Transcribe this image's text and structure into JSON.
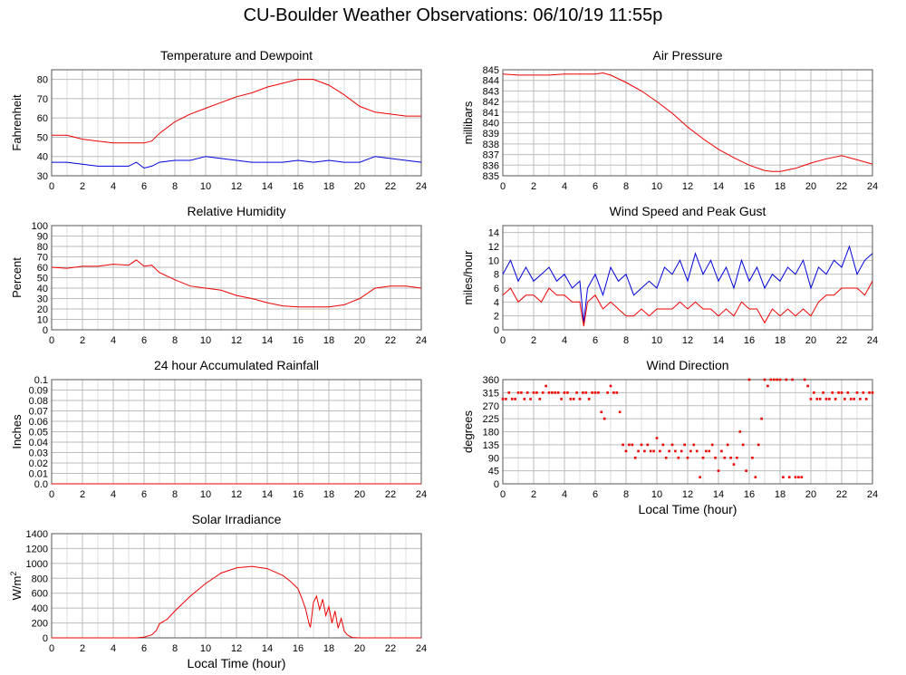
{
  "page": {
    "title": "CU-Boulder Weather Observations: 06/10/19 11:55p"
  },
  "colors": {
    "red": "#ee0000",
    "blue": "#0000dd",
    "grid": "#bbbbbb",
    "frame": "#555555"
  },
  "chart_data": [
    {
      "id": "temp",
      "type": "line",
      "title": "Temperature and Dewpoint",
      "xlabel": "",
      "ylabel": "Fahrenheit",
      "xlim": [
        0,
        24
      ],
      "ylim": [
        30,
        85
      ],
      "xticks": [
        0,
        2,
        4,
        6,
        8,
        10,
        12,
        14,
        16,
        18,
        20,
        22,
        24
      ],
      "yticks": [
        30,
        40,
        50,
        60,
        70,
        80
      ],
      "series": [
        {
          "color": "red",
          "x": [
            0,
            1,
            2,
            3,
            4,
            5,
            6,
            6.5,
            7,
            7.5,
            8,
            9,
            10,
            11,
            12,
            13,
            14,
            15,
            16,
            16.5,
            17,
            18,
            19,
            20,
            21,
            22,
            23,
            24
          ],
          "y": [
            51,
            51,
            49,
            48,
            47,
            47,
            47,
            48,
            52,
            55,
            58,
            62,
            65,
            68,
            71,
            73,
            76,
            78,
            80,
            80,
            80,
            77,
            72,
            66,
            63,
            62,
            61,
            61
          ]
        },
        {
          "color": "blue",
          "x": [
            0,
            1,
            2,
            3,
            4,
            5,
            5.5,
            6,
            6.5,
            7,
            8,
            9,
            10,
            11,
            12,
            13,
            14,
            15,
            16,
            17,
            18,
            19,
            20,
            21,
            22,
            23,
            24
          ],
          "y": [
            37,
            37,
            36,
            35,
            35,
            35,
            37,
            34,
            35,
            37,
            38,
            38,
            40,
            39,
            38,
            37,
            37,
            37,
            38,
            37,
            38,
            37,
            37,
            40,
            39,
            38,
            37
          ]
        }
      ]
    },
    {
      "id": "pressure",
      "type": "line",
      "title": "Air Pressure",
      "xlabel": "",
      "ylabel": "millibars",
      "xlim": [
        0,
        24
      ],
      "ylim": [
        835,
        845
      ],
      "xticks": [
        0,
        2,
        4,
        6,
        8,
        10,
        12,
        14,
        16,
        18,
        20,
        22,
        24
      ],
      "yticks": [
        835,
        836,
        837,
        838,
        839,
        840,
        841,
        842,
        843,
        844,
        845
      ],
      "series": [
        {
          "color": "red",
          "x": [
            0,
            1,
            2,
            3,
            4,
            5,
            6,
            6.5,
            7,
            8,
            9,
            10,
            11,
            12,
            13,
            14,
            15,
            16,
            17,
            17.5,
            18,
            19,
            20,
            21,
            22,
            23,
            24
          ],
          "y": [
            844.6,
            844.5,
            844.5,
            844.5,
            844.6,
            844.6,
            844.6,
            844.7,
            844.5,
            843.8,
            843,
            842,
            840.9,
            839.6,
            838.5,
            837.5,
            836.7,
            836,
            835.5,
            835.4,
            835.4,
            835.7,
            836.2,
            836.6,
            836.9,
            836.5,
            836.1
          ]
        }
      ]
    },
    {
      "id": "humidity",
      "type": "line",
      "title": "Relative Humidity",
      "xlabel": "",
      "ylabel": "Percent",
      "xlim": [
        0,
        24
      ],
      "ylim": [
        0,
        100
      ],
      "xticks": [
        0,
        2,
        4,
        6,
        8,
        10,
        12,
        14,
        16,
        18,
        20,
        22,
        24
      ],
      "yticks": [
        0,
        10,
        20,
        30,
        40,
        50,
        60,
        70,
        80,
        90,
        100
      ],
      "series": [
        {
          "color": "red",
          "x": [
            0,
            1,
            2,
            3,
            4,
            5,
            5.5,
            6,
            6.5,
            7,
            8,
            9,
            10,
            11,
            12,
            13,
            14,
            15,
            16,
            17,
            18,
            19,
            20,
            21,
            22,
            23,
            24
          ],
          "y": [
            60,
            59,
            61,
            61,
            63,
            62,
            67,
            61,
            62,
            55,
            48,
            42,
            40,
            38,
            33,
            30,
            26,
            23,
            22,
            22,
            22,
            24,
            30,
            40,
            42,
            42,
            40
          ]
        }
      ]
    },
    {
      "id": "wind",
      "type": "line",
      "title": "Wind Speed and Peak Gust",
      "xlabel": "",
      "ylabel": "miles/hour",
      "xlim": [
        0,
        24
      ],
      "ylim": [
        0,
        15
      ],
      "xticks": [
        0,
        2,
        4,
        6,
        8,
        10,
        12,
        14,
        16,
        18,
        20,
        22,
        24
      ],
      "yticks": [
        0,
        2,
        4,
        6,
        8,
        10,
        12,
        14
      ],
      "series": [
        {
          "color": "blue",
          "x": [
            0,
            0.5,
            1,
            1.5,
            2,
            2.5,
            3,
            3.5,
            4,
            4.5,
            5,
            5.25,
            5.5,
            6,
            6.5,
            7,
            7.5,
            8,
            8.5,
            9,
            9.5,
            10,
            10.5,
            11,
            11.5,
            12,
            12.5,
            13,
            13.5,
            14,
            14.5,
            15,
            15.5,
            16,
            16.5,
            17,
            17.5,
            18,
            18.5,
            19,
            19.5,
            20,
            20.5,
            21,
            21.5,
            22,
            22.5,
            23,
            23.5,
            24
          ],
          "y": [
            8,
            10,
            7,
            9,
            7,
            8,
            9,
            7,
            8,
            6,
            7,
            1,
            6,
            8,
            5,
            9,
            7,
            8,
            5,
            6,
            7,
            6,
            9,
            8,
            10,
            7,
            11,
            8,
            10,
            7,
            9,
            6,
            10,
            7,
            9,
            6,
            8,
            7,
            9,
            8,
            10,
            6,
            9,
            8,
            10,
            9,
            12,
            8,
            10,
            11
          ]
        },
        {
          "color": "red",
          "x": [
            0,
            0.5,
            1,
            1.5,
            2,
            2.5,
            3,
            3.5,
            4,
            4.5,
            5,
            5.25,
            5.5,
            6,
            6.5,
            7,
            7.5,
            8,
            8.5,
            9,
            9.5,
            10,
            10.5,
            11,
            11.5,
            12,
            12.5,
            13,
            13.5,
            14,
            14.5,
            15,
            15.5,
            16,
            16.5,
            17,
            17.5,
            18,
            18.5,
            19,
            19.5,
            20,
            20.5,
            21,
            21.5,
            22,
            22.5,
            23,
            23.5,
            24
          ],
          "y": [
            5,
            6,
            4,
            5,
            5,
            4,
            6,
            5,
            5,
            4,
            4,
            0.5,
            4,
            5,
            3,
            4,
            3,
            2,
            2,
            3,
            2,
            3,
            3,
            3,
            4,
            3,
            4,
            3,
            3,
            2,
            3,
            2,
            4,
            3,
            3,
            1,
            3,
            2,
            3,
            2,
            3,
            2,
            4,
            5,
            5,
            6,
            6,
            6,
            5,
            7
          ]
        }
      ]
    },
    {
      "id": "rain",
      "type": "line",
      "title": "24 hour Accumulated Rainfall",
      "xlabel": "",
      "ylabel": "Inches",
      "xlim": [
        0,
        24
      ],
      "ylim": [
        0,
        0.1
      ],
      "xticks": [
        0,
        2,
        4,
        6,
        8,
        10,
        12,
        14,
        16,
        18,
        20,
        22,
        24
      ],
      "yticks": [
        0,
        0.01,
        0.02,
        0.03,
        0.04,
        0.05,
        0.06,
        0.07,
        0.08,
        0.09,
        0.1
      ],
      "ytick_labels": [
        "0.0",
        "0.01",
        "0.02",
        "0.03",
        "0.04",
        "0.05",
        "0.06",
        "0.07",
        "0.08",
        "0.09",
        "0.1"
      ],
      "series": [
        {
          "color": "red",
          "x": [
            0,
            24
          ],
          "y": [
            0,
            0
          ]
        }
      ]
    },
    {
      "id": "direction",
      "type": "scatter",
      "title": "Wind Direction",
      "xlabel": "Local Time (hour)",
      "ylabel": "degrees",
      "xlim": [
        0,
        24
      ],
      "ylim": [
        0,
        360
      ],
      "xticks": [
        0,
        2,
        4,
        6,
        8,
        10,
        12,
        14,
        16,
        18,
        20,
        22,
        24
      ],
      "yticks": [
        0,
        45,
        90,
        135,
        180,
        225,
        270,
        315,
        360
      ],
      "series": [
        {
          "color": "red",
          "x": [
            0,
            0.2,
            0.4,
            0.6,
            0.8,
            1.0,
            1.2,
            1.4,
            1.6,
            1.8,
            2.0,
            2.2,
            2.4,
            2.6,
            2.8,
            3.0,
            3.2,
            3.4,
            3.6,
            3.8,
            4.0,
            4.2,
            4.4,
            4.6,
            4.8,
            5.0,
            5.2,
            5.4,
            5.6,
            5.8,
            6.0,
            6.2,
            6.4,
            6.6,
            6.8,
            7.0,
            7.2,
            7.4,
            7.6,
            7.8,
            8.0,
            8.2,
            8.4,
            8.6,
            8.8,
            9.0,
            9.2,
            9.4,
            9.6,
            9.8,
            10.0,
            10.2,
            10.4,
            10.6,
            10.8,
            11.0,
            11.2,
            11.4,
            11.6,
            11.8,
            12.0,
            12.2,
            12.4,
            12.6,
            12.8,
            13.0,
            13.2,
            13.4,
            13.6,
            13.8,
            14.0,
            14.2,
            14.4,
            14.6,
            14.8,
            15.0,
            15.2,
            15.4,
            15.6,
            15.8,
            16.0,
            16.2,
            16.4,
            16.6,
            16.8,
            17.0,
            17.2,
            17.4,
            17.6,
            17.8,
            18.0,
            18.2,
            18.4,
            18.6,
            18.8,
            19.0,
            19.2,
            19.4,
            19.6,
            19.8,
            20.0,
            20.2,
            20.4,
            20.6,
            20.8,
            21.0,
            21.2,
            21.4,
            21.6,
            21.8,
            22.0,
            22.2,
            22.4,
            22.6,
            22.8,
            23.0,
            23.2,
            23.4,
            23.6,
            23.8,
            24.0
          ],
          "y": [
            293,
            293,
            315,
            293,
            293,
            315,
            315,
            293,
            315,
            293,
            315,
            315,
            293,
            315,
            338,
            315,
            315,
            315,
            315,
            293,
            315,
            315,
            293,
            293,
            315,
            293,
            315,
            315,
            293,
            315,
            315,
            315,
            248,
            225,
            315,
            338,
            315,
            315,
            248,
            135,
            113,
            135,
            135,
            90,
            113,
            135,
            113,
            135,
            113,
            113,
            158,
            113,
            135,
            90,
            113,
            135,
            113,
            90,
            113,
            135,
            90,
            113,
            135,
            113,
            23,
            90,
            113,
            113,
            135,
            90,
            45,
            113,
            90,
            135,
            90,
            67,
            90,
            180,
            135,
            45,
            360,
            90,
            23,
            135,
            225,
            360,
            338,
            360,
            360,
            360,
            360,
            23,
            360,
            23,
            360,
            23,
            23,
            23,
            360,
            338,
            293,
            315,
            293,
            293,
            315,
            293,
            293,
            315,
            293,
            315,
            315,
            293,
            315,
            293,
            293,
            315,
            293,
            315,
            293,
            315,
            315
          ]
        }
      ]
    },
    {
      "id": "solar",
      "type": "line",
      "title": "Solar Irradiance",
      "xlabel": "Local Time (hour)",
      "ylabel": "W/m",
      "ylabel_sup": "2",
      "xlim": [
        0,
        24
      ],
      "ylim": [
        0,
        1400
      ],
      "xticks": [
        0,
        2,
        4,
        6,
        8,
        10,
        12,
        14,
        16,
        18,
        20,
        22,
        24
      ],
      "yticks": [
        0,
        200,
        400,
        600,
        800,
        1000,
        1200,
        1400
      ],
      "series": [
        {
          "color": "red",
          "x": [
            0,
            5.5,
            6,
            6.5,
            6.8,
            7,
            7.5,
            8,
            9,
            10,
            11,
            12,
            13,
            14,
            15,
            15.5,
            16,
            16.3,
            16.5,
            16.7,
            16.8,
            17,
            17.2,
            17.4,
            17.6,
            17.8,
            18,
            18.2,
            18.4,
            18.6,
            18.8,
            19,
            19.2,
            19.5,
            20,
            24
          ],
          "y": [
            0,
            0,
            10,
            40,
            100,
            190,
            250,
            360,
            560,
            730,
            870,
            940,
            960,
            930,
            840,
            760,
            660,
            500,
            380,
            200,
            140,
            480,
            560,
            380,
            520,
            300,
            420,
            200,
            360,
            130,
            260,
            90,
            40,
            5,
            0,
            0
          ]
        }
      ]
    }
  ]
}
